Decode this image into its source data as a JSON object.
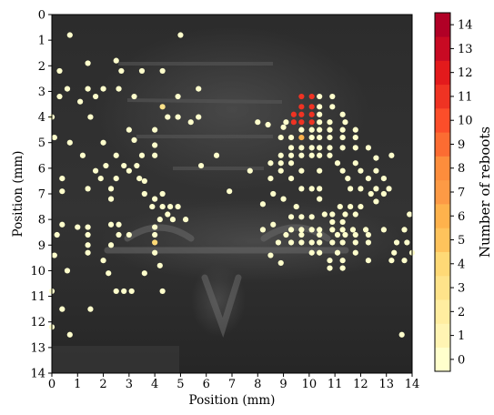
{
  "chart_data": {
    "type": "scatter",
    "xlabel": "Position (mm)",
    "ylabel": "Position (mm)",
    "xlim": [
      0,
      14
    ],
    "ylim": [
      14,
      0
    ],
    "x_ticks": [
      "0",
      "1",
      "2",
      "3",
      "4",
      "5",
      "6",
      "7",
      "8",
      "9",
      "10",
      "11",
      "12",
      "13",
      "14"
    ],
    "y_ticks": [
      "0",
      "1",
      "2",
      "3",
      "4",
      "5",
      "6",
      "7",
      "8",
      "9",
      "10",
      "11",
      "12",
      "13",
      "14"
    ],
    "colorbar": {
      "label": "Number of reboots",
      "ticks": [
        "0",
        "1",
        "2",
        "3",
        "4",
        "5",
        "6",
        "7",
        "8",
        "9",
        "10",
        "11",
        "12",
        "13",
        "14"
      ],
      "range": [
        -0.5,
        14.5
      ],
      "colormap": "YlOrRd"
    },
    "background": "grayscale photograph of chip die with faint lettering",
    "points": [
      [
        0.7,
        0.8,
        0
      ],
      [
        5.0,
        0.8,
        0
      ],
      [
        2.5,
        1.8,
        0
      ],
      [
        1.4,
        1.9,
        0
      ],
      [
        2.7,
        2.2,
        0
      ],
      [
        3.5,
        2.2,
        0
      ],
      [
        4.3,
        2.2,
        0
      ],
      [
        0.3,
        2.2,
        0
      ],
      [
        0.6,
        2.9,
        0
      ],
      [
        1.4,
        2.9,
        0
      ],
      [
        2.0,
        2.9,
        0
      ],
      [
        2.6,
        2.9,
        0
      ],
      [
        5.7,
        2.9,
        0
      ],
      [
        0.3,
        3.2,
        0
      ],
      [
        1.7,
        3.2,
        0
      ],
      [
        3.2,
        3.2,
        0
      ],
      [
        4.9,
        3.2,
        0
      ],
      [
        1.1,
        3.4,
        0
      ],
      [
        4.3,
        3.6,
        3
      ],
      [
        4.5,
        4.0,
        0
      ],
      [
        0.0,
        4.0,
        0
      ],
      [
        1.5,
        4.0,
        0
      ],
      [
        4.9,
        4.0,
        0
      ],
      [
        5.4,
        4.2,
        0
      ],
      [
        5.7,
        4.0,
        0
      ],
      [
        3.0,
        4.5,
        0
      ],
      [
        4.0,
        4.5,
        0
      ],
      [
        0.1,
        4.8,
        0
      ],
      [
        0.7,
        5.0,
        0
      ],
      [
        2.0,
        5.0,
        0
      ],
      [
        3.2,
        4.9,
        0
      ],
      [
        4.0,
        5.1,
        0
      ],
      [
        1.2,
        5.5,
        0
      ],
      [
        2.5,
        5.5,
        0
      ],
      [
        3.5,
        5.5,
        0
      ],
      [
        4.0,
        5.5,
        0
      ],
      [
        6.4,
        5.5,
        0
      ],
      [
        2.1,
        5.9,
        0
      ],
      [
        2.8,
        5.9,
        0
      ],
      [
        3.3,
        5.9,
        0
      ],
      [
        5.8,
        5.9,
        0
      ],
      [
        1.7,
        6.1,
        0
      ],
      [
        3.0,
        6.1,
        0
      ],
      [
        0.4,
        6.4,
        0
      ],
      [
        1.9,
        6.4,
        0
      ],
      [
        2.5,
        6.4,
        0
      ],
      [
        3.4,
        6.4,
        0
      ],
      [
        1.4,
        6.8,
        0
      ],
      [
        2.3,
        6.8,
        0
      ],
      [
        3.6,
        6.5,
        0
      ],
      [
        0.4,
        6.9,
        0
      ],
      [
        6.9,
        6.9,
        0
      ],
      [
        3.6,
        7.0,
        0
      ],
      [
        4.3,
        7.0,
        0
      ],
      [
        2.3,
        7.2,
        0
      ],
      [
        4.0,
        7.2,
        0
      ],
      [
        3.9,
        7.5,
        0
      ],
      [
        4.3,
        7.5,
        0
      ],
      [
        4.6,
        7.5,
        0
      ],
      [
        4.9,
        7.5,
        0
      ],
      [
        4.5,
        7.8,
        0
      ],
      [
        4.2,
        8.0,
        0
      ],
      [
        4.7,
        8.0,
        0
      ],
      [
        5.2,
        8.0,
        0
      ],
      [
        2.3,
        8.2,
        0
      ],
      [
        2.6,
        8.2,
        0
      ],
      [
        0.4,
        8.2,
        0
      ],
      [
        1.4,
        8.3,
        0
      ],
      [
        2.6,
        8.6,
        0
      ],
      [
        3.0,
        8.6,
        0
      ],
      [
        4.0,
        8.3,
        0
      ],
      [
        4.0,
        8.6,
        0
      ],
      [
        4.0,
        8.9,
        4
      ],
      [
        1.4,
        8.6,
        0
      ],
      [
        1.0,
        8.3,
        0
      ],
      [
        0.2,
        8.6,
        0
      ],
      [
        1.4,
        9.0,
        0
      ],
      [
        2.3,
        9.0,
        0
      ],
      [
        4.0,
        9.3,
        0
      ],
      [
        1.4,
        9.3,
        0
      ],
      [
        0.1,
        9.4,
        0
      ],
      [
        2.0,
        9.6,
        0
      ],
      [
        4.2,
        9.8,
        0
      ],
      [
        0.6,
        10.0,
        0
      ],
      [
        2.2,
        10.1,
        0
      ],
      [
        3.6,
        10.1,
        0
      ],
      [
        2.5,
        10.8,
        0
      ],
      [
        2.8,
        10.8,
        0
      ],
      [
        3.1,
        10.8,
        0
      ],
      [
        4.3,
        10.8,
        0
      ],
      [
        0.0,
        10.8,
        0
      ],
      [
        1.5,
        11.5,
        0
      ],
      [
        0.4,
        11.5,
        0
      ],
      [
        0.0,
        12.2,
        0
      ],
      [
        0.7,
        12.5,
        0
      ],
      [
        9.7,
        3.2,
        11
      ],
      [
        10.1,
        3.2,
        11
      ],
      [
        10.4,
        3.2,
        0
      ],
      [
        10.9,
        3.2,
        0
      ],
      [
        9.7,
        3.6,
        11
      ],
      [
        10.1,
        3.6,
        11
      ],
      [
        10.4,
        3.6,
        0
      ],
      [
        10.9,
        3.6,
        0
      ],
      [
        9.4,
        3.9,
        11
      ],
      [
        9.7,
        3.9,
        11
      ],
      [
        10.1,
        3.9,
        11
      ],
      [
        10.4,
        3.9,
        0
      ],
      [
        11.3,
        3.9,
        0
      ],
      [
        9.1,
        4.2,
        0
      ],
      [
        9.4,
        4.2,
        11
      ],
      [
        9.7,
        4.2,
        11
      ],
      [
        10.1,
        4.2,
        11
      ],
      [
        10.4,
        4.2,
        0
      ],
      [
        10.8,
        4.2,
        0
      ],
      [
        11.4,
        4.2,
        0
      ],
      [
        9.0,
        4.4,
        0
      ],
      [
        9.7,
        4.5,
        0
      ],
      [
        10.1,
        4.5,
        0
      ],
      [
        10.4,
        4.5,
        0
      ],
      [
        10.8,
        4.5,
        0
      ],
      [
        11.3,
        4.5,
        0
      ],
      [
        11.8,
        4.5,
        0
      ],
      [
        8.9,
        4.8,
        0
      ],
      [
        9.3,
        4.8,
        0
      ],
      [
        9.7,
        4.8,
        6
      ],
      [
        10.1,
        4.8,
        0
      ],
      [
        10.4,
        4.8,
        0
      ],
      [
        10.8,
        4.8,
        0
      ],
      [
        11.3,
        4.8,
        0
      ],
      [
        11.8,
        4.8,
        0
      ],
      [
        8.0,
        4.2,
        0
      ],
      [
        8.4,
        4.3,
        0
      ],
      [
        9.3,
        5.2,
        0
      ],
      [
        9.7,
        5.2,
        0
      ],
      [
        10.1,
        5.2,
        0
      ],
      [
        10.4,
        5.2,
        0
      ],
      [
        10.8,
        5.2,
        0
      ],
      [
        11.3,
        5.2,
        0
      ],
      [
        11.8,
        5.2,
        0
      ],
      [
        12.3,
        5.2,
        0
      ],
      [
        8.9,
        5.5,
        0
      ],
      [
        9.3,
        5.5,
        0
      ],
      [
        9.7,
        5.5,
        0
      ],
      [
        10.1,
        5.5,
        0
      ],
      [
        10.4,
        5.5,
        0
      ],
      [
        10.8,
        5.5,
        0
      ],
      [
        8.5,
        5.8,
        0
      ],
      [
        8.9,
        5.8,
        0
      ],
      [
        9.3,
        5.8,
        0
      ],
      [
        11.1,
        5.8,
        0
      ],
      [
        11.8,
        5.8,
        0
      ],
      [
        12.6,
        5.6,
        0
      ],
      [
        13.2,
        5.5,
        0
      ],
      [
        7.7,
        6.1,
        0
      ],
      [
        8.9,
        6.1,
        0
      ],
      [
        9.7,
        6.1,
        0
      ],
      [
        10.4,
        6.1,
        0
      ],
      [
        11.3,
        6.1,
        0
      ],
      [
        12.0,
        6.1,
        0
      ],
      [
        12.6,
        6.1,
        0
      ],
      [
        8.5,
        6.4,
        0
      ],
      [
        9.3,
        6.4,
        0
      ],
      [
        11.5,
        6.4,
        0
      ],
      [
        12.3,
        6.4,
        0
      ],
      [
        12.9,
        6.4,
        0
      ],
      [
        9.7,
        6.8,
        0
      ],
      [
        10.1,
        6.8,
        0
      ],
      [
        10.4,
        6.8,
        0
      ],
      [
        11.6,
        6.8,
        0
      ],
      [
        12.0,
        6.8,
        0
      ],
      [
        12.6,
        6.8,
        0
      ],
      [
        13.1,
        6.8,
        0
      ],
      [
        8.6,
        7.0,
        0
      ],
      [
        8.2,
        7.4,
        0
      ],
      [
        9.5,
        7.5,
        0
      ],
      [
        12.9,
        7.0,
        0
      ],
      [
        12.6,
        7.3,
        0
      ],
      [
        11.2,
        7.5,
        0
      ],
      [
        11.6,
        7.5,
        0
      ],
      [
        12.0,
        7.5,
        0
      ],
      [
        10.6,
        7.8,
        0
      ],
      [
        10.9,
        7.8,
        0
      ],
      [
        11.4,
        7.8,
        0
      ],
      [
        11.8,
        7.8,
        0
      ],
      [
        9.3,
        7.9,
        0
      ],
      [
        9.7,
        7.9,
        0
      ],
      [
        10.1,
        7.9,
        0
      ],
      [
        10.9,
        8.1,
        0
      ],
      [
        11.3,
        8.1,
        0
      ],
      [
        8.6,
        8.2,
        0
      ],
      [
        8.2,
        8.4,
        0
      ],
      [
        9.3,
        8.4,
        0
      ],
      [
        9.7,
        8.4,
        0
      ],
      [
        10.1,
        8.4,
        0
      ],
      [
        10.4,
        8.4,
        0
      ],
      [
        10.9,
        8.4,
        0
      ],
      [
        11.3,
        8.4,
        0
      ],
      [
        11.7,
        8.4,
        0
      ],
      [
        12.2,
        8.4,
        0
      ],
      [
        12.9,
        8.4,
        0
      ],
      [
        13.7,
        8.4,
        0
      ],
      [
        9.1,
        8.6,
        0
      ],
      [
        9.7,
        8.6,
        0
      ],
      [
        10.4,
        8.6,
        0
      ],
      [
        11.1,
        8.6,
        0
      ],
      [
        11.4,
        8.6,
        0
      ],
      [
        11.8,
        8.6,
        0
      ],
      [
        12.3,
        8.6,
        0
      ],
      [
        8.8,
        8.9,
        0
      ],
      [
        9.3,
        8.9,
        0
      ],
      [
        9.7,
        8.9,
        0
      ],
      [
        10.1,
        8.9,
        0
      ],
      [
        10.4,
        8.9,
        0
      ],
      [
        10.9,
        8.9,
        0
      ],
      [
        11.3,
        8.9,
        0
      ],
      [
        11.8,
        8.9,
        0
      ],
      [
        12.3,
        8.9,
        0
      ],
      [
        13.4,
        8.9,
        0
      ],
      [
        13.8,
        8.9,
        0
      ],
      [
        10.1,
        9.3,
        0
      ],
      [
        10.4,
        9.3,
        0
      ],
      [
        11.1,
        9.3,
        0
      ],
      [
        11.8,
        9.3,
        0
      ],
      [
        13.3,
        9.3,
        0
      ],
      [
        14.0,
        9.3,
        0
      ],
      [
        8.5,
        9.4,
        0
      ],
      [
        10.8,
        9.6,
        0
      ],
      [
        11.3,
        9.6,
        0
      ],
      [
        12.3,
        9.6,
        0
      ],
      [
        13.2,
        9.6,
        0
      ],
      [
        13.7,
        9.6,
        0
      ],
      [
        8.9,
        9.7,
        0
      ],
      [
        10.8,
        9.9,
        0
      ],
      [
        11.3,
        9.9,
        0
      ],
      [
        13.9,
        7.8,
        0
      ],
      [
        13.6,
        12.5,
        0
      ],
      [
        12.4,
        7.0,
        0
      ],
      [
        9.0,
        7.2,
        0
      ],
      [
        10.4,
        7.2,
        0
      ]
    ]
  }
}
